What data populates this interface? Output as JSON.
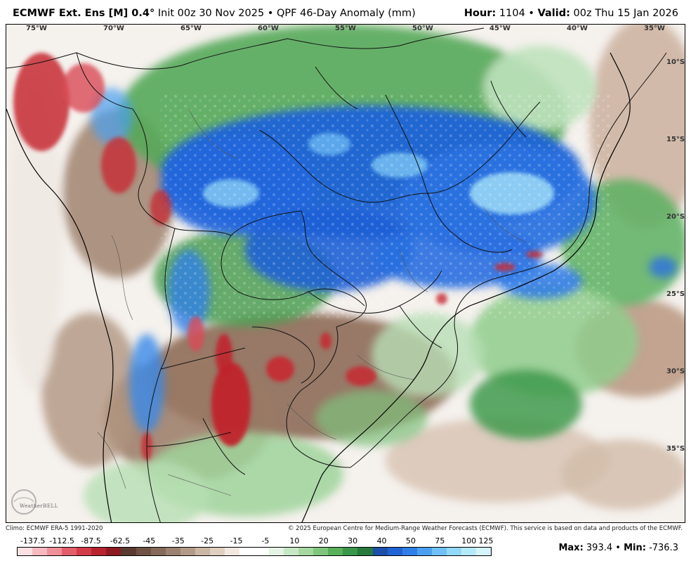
{
  "header": {
    "model": "ECMWF Ext. Ens [M] 0.4°",
    "init": "Init 00z 30 Nov 2025",
    "separator": "•",
    "product": "QPF 46-Day Anomaly (mm)",
    "hour_label": "Hour:",
    "hour_value": "1104",
    "valid_label": "Valid:",
    "valid_value": "00z Thu 15 Jan 2026"
  },
  "map": {
    "longitudes": [
      "75°W",
      "70°W",
      "65°W",
      "60°W",
      "55°W",
      "50°W",
      "45°W",
      "40°W",
      "35°W"
    ],
    "latitudes": [
      "10°S",
      "15°S",
      "20°S",
      "25°S",
      "30°S",
      "35°S"
    ],
    "colors": {
      "heavy_wet": "#1f5fd6",
      "very_wet": "#a5e6f7",
      "wet": "#2f8f45",
      "light_wet": "#b9e0b8",
      "dry": "#8a6a55",
      "very_dry": "#c62a32",
      "neutral": "#f4f0ec"
    },
    "watermark": "WeatherBELL"
  },
  "footer": {
    "climo": "Climo: ECMWF ERA-5 1991-2020",
    "copyright": "© 2025 European Centre for Medium-Range Weather Forecasts (ECMWF). This service is based on data and products of the ECMWF."
  },
  "legend": {
    "labels": [
      "-137.5",
      "-112.5",
      "-87.5",
      "-62.5",
      "-45",
      "-35",
      "-25",
      "-15",
      "-5",
      "10",
      "20",
      "30",
      "40",
      "50",
      "75",
      "100",
      "125"
    ],
    "colors": [
      "#fbe0e3",
      "#f6b9c0",
      "#ef8f99",
      "#e35e6b",
      "#d33b47",
      "#b82330",
      "#8c1a22",
      "#5a3a30",
      "#6e5244",
      "#85695a",
      "#9b8170",
      "#b39a88",
      "#cbb5a3",
      "#e0d0c0",
      "#f1e8df",
      "#ffffff",
      "#ffffff",
      "#e5f3e3",
      "#c7e7c4",
      "#a5d8a1",
      "#7fc67c",
      "#58b05a",
      "#3a974a",
      "#267a3c",
      "#1d4fa8",
      "#2163d3",
      "#2e7fe8",
      "#4aa0f0",
      "#6fc0f5",
      "#93d8f7",
      "#b5eaf9",
      "#d6f5fb"
    ]
  },
  "stats": {
    "max_label": "Max:",
    "max_value": "393.4",
    "separator": "•",
    "min_label": "Min:",
    "min_value": "-736.3"
  }
}
